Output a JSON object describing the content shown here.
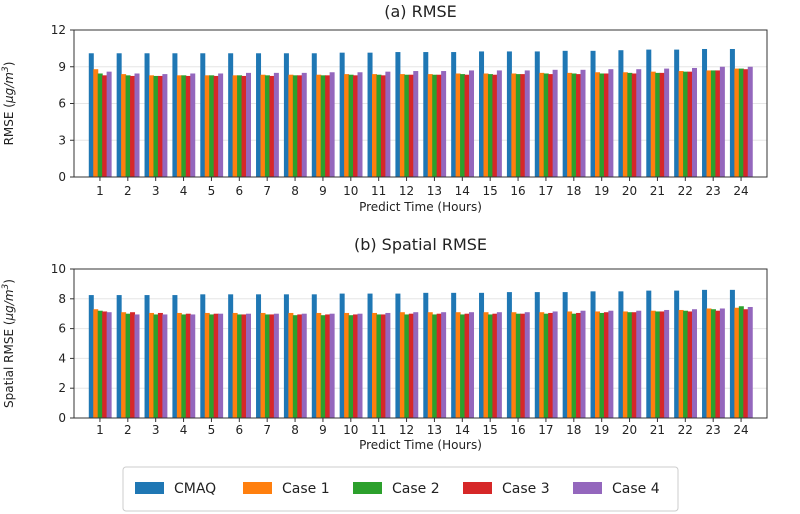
{
  "chart_data": [
    {
      "type": "bar",
      "title": "(a) RMSE",
      "xlabel": "Predict Time (Hours)",
      "ylabel_prefix": "RMSE (",
      "ylabel_unit_mu": "μg",
      "ylabel_unit_m": "/m",
      "ylabel_sup": "3",
      "ylabel_suffix": ")",
      "ylim": [
        0,
        12
      ],
      "yticks": [
        "0",
        "3",
        "6",
        "9",
        "12"
      ],
      "grid": true,
      "categories": [
        "1",
        "2",
        "3",
        "4",
        "5",
        "6",
        "7",
        "8",
        "9",
        "10",
        "11",
        "12",
        "13",
        "14",
        "15",
        "16",
        "17",
        "18",
        "19",
        "20",
        "21",
        "22",
        "23",
        "24"
      ],
      "series": [
        {
          "name": "CMAQ",
          "values": [
            10.1,
            10.1,
            10.1,
            10.1,
            10.1,
            10.1,
            10.1,
            10.1,
            10.1,
            10.15,
            10.15,
            10.2,
            10.2,
            10.2,
            10.25,
            10.25,
            10.25,
            10.3,
            10.3,
            10.35,
            10.4,
            10.4,
            10.45,
            10.45
          ]
        },
        {
          "name": "Case 1",
          "values": [
            8.8,
            8.4,
            8.3,
            8.3,
            8.3,
            8.3,
            8.35,
            8.35,
            8.35,
            8.4,
            8.4,
            8.4,
            8.4,
            8.45,
            8.45,
            8.45,
            8.5,
            8.5,
            8.55,
            8.55,
            8.6,
            8.65,
            8.7,
            8.85
          ]
        },
        {
          "name": "Case 2",
          "values": [
            8.45,
            8.3,
            8.25,
            8.3,
            8.3,
            8.3,
            8.3,
            8.3,
            8.3,
            8.35,
            8.35,
            8.35,
            8.35,
            8.4,
            8.4,
            8.4,
            8.45,
            8.45,
            8.45,
            8.5,
            8.5,
            8.6,
            8.7,
            8.85
          ]
        },
        {
          "name": "Case 3",
          "values": [
            8.3,
            8.25,
            8.25,
            8.25,
            8.25,
            8.25,
            8.25,
            8.3,
            8.3,
            8.3,
            8.3,
            8.35,
            8.35,
            8.35,
            8.35,
            8.4,
            8.4,
            8.4,
            8.45,
            8.45,
            8.5,
            8.6,
            8.7,
            8.8
          ]
        },
        {
          "name": "Case 4",
          "values": [
            8.6,
            8.45,
            8.4,
            8.45,
            8.45,
            8.5,
            8.5,
            8.5,
            8.55,
            8.55,
            8.6,
            8.65,
            8.65,
            8.7,
            8.7,
            8.7,
            8.75,
            8.75,
            8.8,
            8.8,
            8.85,
            8.9,
            9.0,
            9.0
          ]
        }
      ]
    },
    {
      "type": "bar",
      "title": "(b) Spatial RMSE",
      "xlabel": "Predict Time (Hours)",
      "ylabel_prefix": "Spatial RMSE (",
      "ylabel_unit_mu": "μg",
      "ylabel_unit_m": "/m",
      "ylabel_sup": "3",
      "ylabel_suffix": ")",
      "ylim": [
        0,
        10
      ],
      "yticks": [
        "0",
        "2",
        "4",
        "6",
        "8",
        "10"
      ],
      "grid": true,
      "categories": [
        "1",
        "2",
        "3",
        "4",
        "5",
        "6",
        "7",
        "8",
        "9",
        "10",
        "11",
        "12",
        "13",
        "14",
        "15",
        "16",
        "17",
        "18",
        "19",
        "20",
        "21",
        "22",
        "23",
        "24"
      ],
      "series": [
        {
          "name": "CMAQ",
          "values": [
            8.25,
            8.25,
            8.25,
            8.25,
            8.3,
            8.3,
            8.3,
            8.3,
            8.3,
            8.35,
            8.35,
            8.35,
            8.4,
            8.4,
            8.4,
            8.45,
            8.45,
            8.45,
            8.5,
            8.5,
            8.55,
            8.55,
            8.6,
            8.6
          ]
        },
        {
          "name": "Case 1",
          "values": [
            7.3,
            7.1,
            7.05,
            7.05,
            7.05,
            7.05,
            7.05,
            7.05,
            7.05,
            7.05,
            7.05,
            7.1,
            7.1,
            7.1,
            7.1,
            7.1,
            7.1,
            7.15,
            7.15,
            7.15,
            7.2,
            7.25,
            7.35,
            7.4
          ]
        },
        {
          "name": "Case 2",
          "values": [
            7.2,
            7.0,
            6.95,
            6.95,
            6.95,
            6.95,
            6.95,
            6.9,
            6.9,
            6.9,
            6.95,
            6.95,
            6.95,
            6.95,
            6.95,
            7.0,
            7.0,
            7.0,
            7.05,
            7.1,
            7.15,
            7.2,
            7.3,
            7.5
          ]
        },
        {
          "name": "Case 3",
          "values": [
            7.15,
            7.1,
            7.05,
            7.0,
            7.0,
            6.95,
            6.95,
            6.95,
            6.95,
            6.95,
            6.95,
            7.0,
            7.0,
            7.0,
            7.0,
            7.0,
            7.05,
            7.05,
            7.1,
            7.1,
            7.15,
            7.15,
            7.2,
            7.3
          ]
        },
        {
          "name": "Case 4",
          "values": [
            7.1,
            6.95,
            6.95,
            6.95,
            7.0,
            7.0,
            7.0,
            7.0,
            7.0,
            7.0,
            7.05,
            7.1,
            7.1,
            7.1,
            7.1,
            7.1,
            7.15,
            7.2,
            7.2,
            7.2,
            7.25,
            7.3,
            7.35,
            7.45
          ]
        }
      ]
    }
  ],
  "legend": {
    "placement": "bottom-center",
    "entries": [
      "CMAQ",
      "Case 1",
      "Case 2",
      "Case 3",
      "Case 4"
    ]
  },
  "colors": {
    "CMAQ": "#1f77b4",
    "Case 1": "#ff7f0e",
    "Case 2": "#2ca02c",
    "Case 3": "#d62728",
    "Case 4": "#9467bd"
  }
}
